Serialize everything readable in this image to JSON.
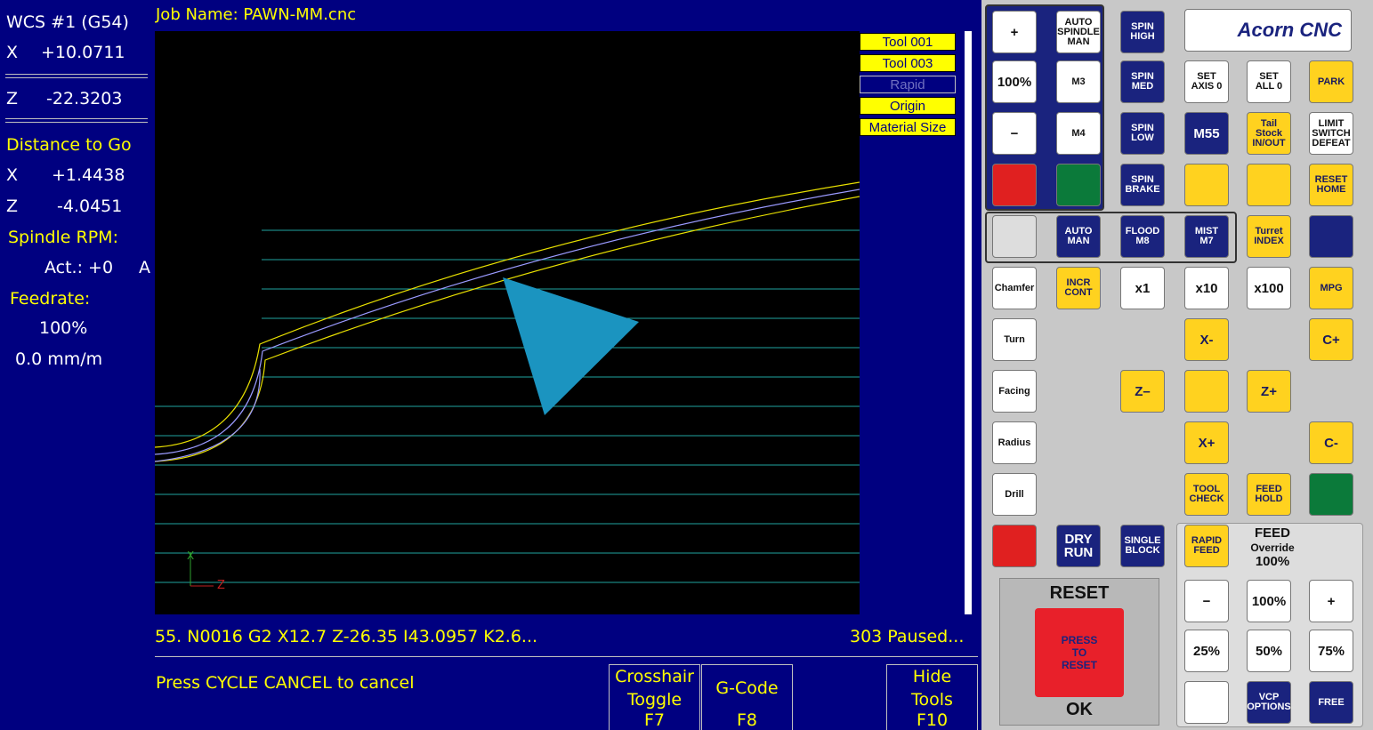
{
  "job_name": "Job Name: PAWN-MM.cnc",
  "dro": {
    "wcs": "WCS #1 (G54)",
    "axes": [
      {
        "axis": "X",
        "value": "+10.0711"
      },
      {
        "axis": "Z",
        "value": "-22.3203"
      }
    ],
    "distance_title": "Distance to Go",
    "distance": [
      {
        "axis": "X",
        "value": "+1.4438"
      },
      {
        "axis": "Z",
        "value": "-4.0451"
      }
    ],
    "spindle_title": "Spindle RPM:",
    "spindle_actual": "Act.: +0",
    "spindle_extra": "A",
    "feed_title": "Feedrate:",
    "feed_percent": "100%",
    "feed_rate": "0.0 mm/m"
  },
  "legend": [
    "Tool 001",
    "Tool 003",
    "Rapid",
    "Origin",
    "Material Size"
  ],
  "viewport_axes": {
    "x": "X",
    "z": "Z"
  },
  "status": {
    "gcode_line": "55. N0016 G2 X12.7 Z-26.35 I43.0957 K2.6...",
    "line_state": "303 Paused...",
    "message": "Press CYCLE CANCEL to cancel"
  },
  "softkeys": [
    {
      "lines": [
        "Crosshair",
        "Toggle"
      ],
      "key": "F7"
    },
    {
      "lines": [
        "G-Code"
      ],
      "key": "F8"
    },
    {
      "lines": [
        "Hide",
        "Tools"
      ],
      "key": "F10"
    }
  ],
  "logo": "Acorn CNC",
  "buttons": [
    {
      "lines": [
        "+"
      ]
    },
    {
      "lines": [
        "AUTO",
        "SPINDLE",
        "MAN"
      ]
    },
    {
      "lines": [
        "SPIN",
        "HIGH"
      ]
    },
    {
      "lines": [
        "100%"
      ]
    },
    {
      "lines": [
        "M3"
      ]
    },
    {
      "lines": [
        "SPIN",
        "MED"
      ]
    },
    {
      "lines": [
        "SET",
        "AXIS 0"
      ]
    },
    {
      "lines": [
        "SET",
        "ALL 0"
      ]
    },
    {
      "lines": [
        "PARK"
      ]
    },
    {
      "lines": [
        "−"
      ]
    },
    {
      "lines": [
        "M4"
      ]
    },
    {
      "lines": [
        "SPIN",
        "LOW"
      ]
    },
    {
      "lines": [
        "M55"
      ]
    },
    {
      "lines": [
        "Tail",
        "Stock",
        "IN/OUT"
      ]
    },
    {
      "lines": [
        "LIMIT",
        "SWITCH",
        "DEFEAT"
      ]
    },
    {
      "lines": [
        "SPIN",
        "BRAKE"
      ]
    },
    {
      "lines": [
        "RESET",
        "HOME"
      ]
    },
    {
      "lines": [
        "AUTO",
        "MAN"
      ]
    },
    {
      "lines": [
        "FLOOD",
        "M8"
      ]
    },
    {
      "lines": [
        "MIST",
        "M7"
      ]
    },
    {
      "lines": [
        "Turret",
        "INDEX"
      ]
    },
    {
      "lines": [
        "Chamfer"
      ]
    },
    {
      "lines": [
        "INCR",
        "CONT"
      ]
    },
    {
      "lines": [
        "x1"
      ]
    },
    {
      "lines": [
        "x10"
      ]
    },
    {
      "lines": [
        "x100"
      ]
    },
    {
      "lines": [
        "MPG"
      ]
    },
    {
      "lines": [
        "Turn"
      ]
    },
    {
      "lines": [
        "X-"
      ]
    },
    {
      "lines": [
        "C+"
      ]
    },
    {
      "lines": [
        "Facing"
      ]
    },
    {
      "lines": [
        "Z–"
      ]
    },
    {
      "lines": [
        "Z+"
      ]
    },
    {
      "lines": [
        "Radius"
      ]
    },
    {
      "lines": [
        "X+"
      ]
    },
    {
      "lines": [
        "C-"
      ]
    },
    {
      "lines": [
        "Drill"
      ]
    },
    {
      "lines": [
        "TOOL",
        "CHECK"
      ]
    },
    {
      "lines": [
        "FEED",
        "HOLD"
      ]
    },
    {
      "lines": [
        "DRY",
        "RUN"
      ]
    },
    {
      "lines": [
        "SINGLE",
        "BLOCK"
      ]
    },
    {
      "lines": [
        "RAPID",
        "FEED"
      ]
    },
    {
      "lines": [
        "−"
      ]
    },
    {
      "lines": [
        "100%"
      ]
    },
    {
      "lines": [
        "+"
      ]
    },
    {
      "lines": [
        "25%"
      ]
    },
    {
      "lines": [
        "50%"
      ]
    },
    {
      "lines": [
        "75%"
      ]
    },
    {
      "lines": [
        "VCP",
        "OPTIONS"
      ]
    },
    {
      "lines": [
        "FREE"
      ]
    }
  ],
  "feed_override": {
    "title": "FEED",
    "subtitle": "Override",
    "value": "100%"
  },
  "reset_panel": {
    "title": "RESET",
    "button": [
      "PRESS",
      "TO",
      "RESET"
    ],
    "ok": "OK"
  }
}
